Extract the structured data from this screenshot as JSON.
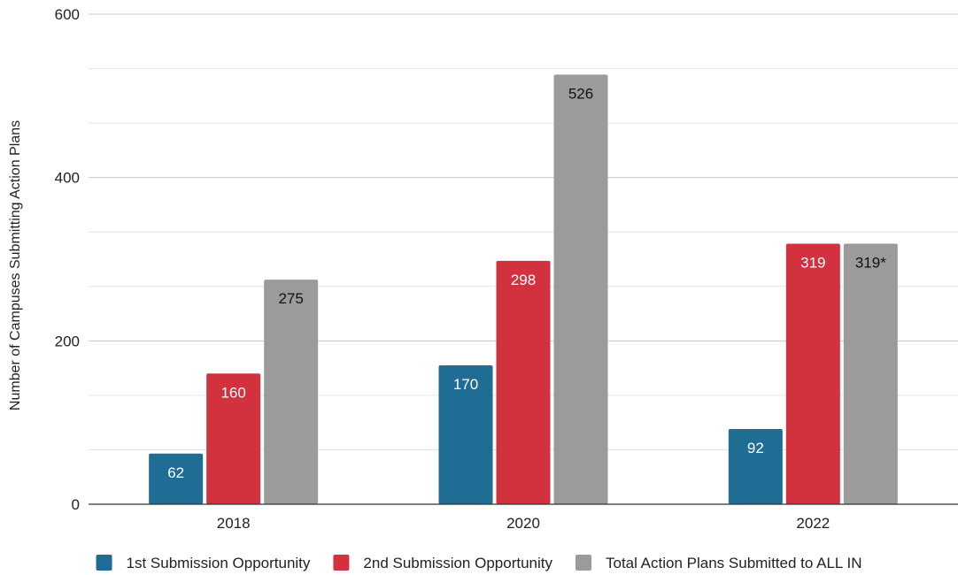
{
  "chart_data": {
    "type": "bar",
    "title": "",
    "xlabel": "",
    "ylabel": "Number of Campuses Submitting Action Plans",
    "ylim": [
      0,
      600
    ],
    "yticks": [
      0,
      200,
      400,
      600
    ],
    "minor_gridlines": true,
    "legend_position": "bottom",
    "categories": [
      "2018",
      "2020",
      "2022"
    ],
    "series": [
      {
        "name": "1st Submission Opportunity",
        "color": "#1f6c94",
        "label_color": "#ffffff",
        "values": [
          62,
          170,
          92
        ],
        "labels": [
          "62",
          "170",
          "92"
        ]
      },
      {
        "name": "2nd Submission Opportunity",
        "color": "#d1323e",
        "label_color": "#ffffff",
        "values": [
          160,
          298,
          319
        ],
        "labels": [
          "160",
          "298",
          "319"
        ]
      },
      {
        "name": "Total Action Plans Submitted to ALL IN",
        "color": "#9b9b9b",
        "label_color": "#111111",
        "values": [
          275,
          526,
          319
        ],
        "labels": [
          "275",
          "526",
          "319*"
        ]
      }
    ]
  }
}
